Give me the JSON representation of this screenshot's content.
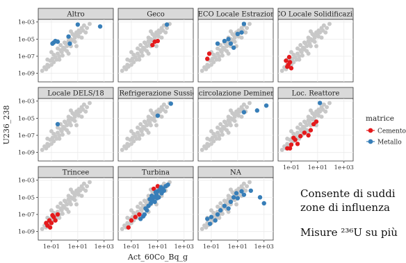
{
  "chart_data": {
    "type": "scatter",
    "facet_by": "location",
    "xlabel": "Act_60Co_Bq_g",
    "ylabel": "U236_238",
    "x_log": true,
    "y_log": true,
    "xlim": [
      0.01,
      5000
    ],
    "ylim": [
      1e-10,
      0.002
    ],
    "x_ticks": [
      0.1,
      10,
      1000
    ],
    "x_tick_labels": [
      "1e-01",
      "1e+01",
      "1e+03"
    ],
    "y_ticks": [
      1e-09,
      1e-07,
      1e-05,
      0.001
    ],
    "y_tick_labels": [
      "1e-09",
      "1e-07",
      "1e-05",
      "1e-03"
    ],
    "grid": true,
    "legend": {
      "title": "matrice",
      "position": "right",
      "entries": [
        {
          "name": "Cemento",
          "color": "#e41a1c"
        },
        {
          "name": "Metallo",
          "color": "#377eb8"
        }
      ]
    },
    "background_color": "#c8c8c8",
    "background_points": [
      [
        0.02,
        2e-09
      ],
      [
        0.03,
        5e-09
      ],
      [
        0.04,
        3e-09
      ],
      [
        0.05,
        1e-08
      ],
      [
        0.06,
        6e-09
      ],
      [
        0.08,
        3e-08
      ],
      [
        0.1,
        1e-08
      ],
      [
        0.12,
        5e-08
      ],
      [
        0.15,
        2e-08
      ],
      [
        0.2,
        8e-08
      ],
      [
        0.25,
        4e-08
      ],
      [
        0.3,
        2e-07
      ],
      [
        0.4,
        1e-07
      ],
      [
        0.5,
        5e-07
      ],
      [
        0.6,
        3e-07
      ],
      [
        0.8,
        1e-06
      ],
      [
        1,
        6e-07
      ],
      [
        1.2,
        3e-06
      ],
      [
        1.5,
        1.5e-06
      ],
      [
        2,
        6e-06
      ],
      [
        2.5,
        3e-06
      ],
      [
        3,
        1e-05
      ],
      [
        4,
        7e-06
      ],
      [
        5,
        3e-05
      ],
      [
        6,
        1.5e-05
      ],
      [
        8,
        6e-05
      ],
      [
        10,
        3e-05
      ],
      [
        12,
        0.0001
      ],
      [
        15,
        6e-05
      ],
      [
        20,
        0.0002
      ],
      [
        25,
        0.0001
      ],
      [
        30,
        0.0004
      ],
      [
        50,
        0.0002
      ],
      [
        80,
        0.0006
      ],
      [
        0.3,
        8e-07
      ],
      [
        0.5,
        2e-06
      ],
      [
        1,
        4e-06
      ],
      [
        2,
        1.5e-05
      ],
      [
        4,
        4e-05
      ],
      [
        0.7,
        1.2e-07
      ],
      [
        1.5,
        4e-07
      ],
      [
        3,
        1.5e-06
      ],
      [
        6,
        5e-06
      ],
      [
        12,
        2e-05
      ],
      [
        0.15,
        1.5e-07
      ],
      [
        0.4,
        4e-08
      ],
      [
        2,
        2e-07
      ],
      [
        8,
        1.5e-06
      ],
      [
        0.05,
        4e-08
      ],
      [
        20,
        1.5e-05
      ],
      [
        40,
        6e-05
      ],
      [
        0.1,
        3e-07
      ],
      [
        3,
        8e-05
      ]
    ],
    "facets": [
      {
        "label": "Altro",
        "show_y": true,
        "show_x": false,
        "points": [
          {
            "x": 0.15,
            "y": 4e-06,
            "m": "Metallo"
          },
          {
            "x": 0.2,
            "y": 6e-06,
            "m": "Metallo"
          },
          {
            "x": 0.3,
            "y": 5e-06,
            "m": "Metallo"
          },
          {
            "x": 0.12,
            "y": 3e-06,
            "m": "Metallo"
          },
          {
            "x": 2,
            "y": 2e-05,
            "m": "Metallo"
          },
          {
            "x": 2.5,
            "y": 3e-06,
            "m": "Metallo"
          },
          {
            "x": 10,
            "y": 0.0005,
            "m": "Metallo"
          },
          {
            "x": 500,
            "y": 0.0003,
            "m": "Metallo"
          }
        ]
      },
      {
        "label": "Geco",
        "show_y": false,
        "show_x": false,
        "points": [
          {
            "x": 6,
            "y": 5e-06,
            "m": "Cemento"
          },
          {
            "x": 10,
            "y": 6e-06,
            "m": "Cemento"
          },
          {
            "x": 4,
            "y": 2e-06,
            "m": "Cemento"
          },
          {
            "x": 50,
            "y": 0.0005,
            "m": "Metallo"
          }
        ]
      },
      {
        "label": "GECO Locale Estrazione",
        "show_y": false,
        "show_x": false,
        "points": [
          {
            "x": 0.05,
            "y": 5e-08,
            "m": "Cemento"
          },
          {
            "x": 0.07,
            "y": 2e-07,
            "m": "Cemento"
          },
          {
            "x": 0.3,
            "y": 3e-06,
            "m": "Metallo"
          },
          {
            "x": 1,
            "y": 6e-06,
            "m": "Metallo"
          },
          {
            "x": 2,
            "y": 1e-05,
            "m": "Metallo"
          },
          {
            "x": 3,
            "y": 3e-06,
            "m": "Metallo"
          },
          {
            "x": 5,
            "y": 1e-06,
            "m": "Metallo"
          },
          {
            "x": 10,
            "y": 4e-05,
            "m": "Metallo"
          },
          {
            "x": 20,
            "y": 6e-05,
            "m": "Metallo"
          },
          {
            "x": 30,
            "y": 0.0006,
            "m": "Metallo"
          }
        ]
      },
      {
        "label": "ECO Locale Solidificazion",
        "show_y": false,
        "show_x": false,
        "points": [
          {
            "x": 0.04,
            "y": 3e-08,
            "m": "Cemento"
          },
          {
            "x": 0.06,
            "y": 1e-08,
            "m": "Cemento"
          },
          {
            "x": 0.08,
            "y": 2e-08,
            "m": "Cemento"
          },
          {
            "x": 0.05,
            "y": 6e-09,
            "m": "Cemento"
          },
          {
            "x": 0.1,
            "y": 4e-09,
            "m": "Cemento"
          },
          {
            "x": 0.07,
            "y": 8e-08,
            "m": "Cemento"
          }
        ]
      },
      {
        "label": "Locale DELS/18",
        "show_y": true,
        "show_x": false,
        "points": [
          {
            "x": 0.3,
            "y": 2e-06,
            "m": "Metallo"
          }
        ]
      },
      {
        "label": "g Refrigerazione Sussidi",
        "show_y": false,
        "show_x": false,
        "points": [
          {
            "x": 10,
            "y": 2e-05,
            "m": "Metallo"
          },
          {
            "x": 100,
            "y": 0.0005,
            "m": "Metallo"
          }
        ]
      },
      {
        "label": "Ricircolazione Demineral",
        "show_y": false,
        "show_x": false,
        "points": [
          {
            "x": 30,
            "y": 5e-05,
            "m": "Metallo"
          },
          {
            "x": 300,
            "y": 8e-05,
            "m": "Metallo"
          },
          {
            "x": 1500,
            "y": 0.0003,
            "m": "Metallo"
          }
        ]
      },
      {
        "label": "Loc. Reattore",
        "show_y": false,
        "show_x": true,
        "points": [
          {
            "x": 0.05,
            "y": 3e-09,
            "m": "Cemento"
          },
          {
            "x": 0.1,
            "y": 8e-09,
            "m": "Cemento"
          },
          {
            "x": 0.08,
            "y": 3e-09,
            "m": "Cemento"
          },
          {
            "x": 0.2,
            "y": 3e-08,
            "m": "Cemento"
          },
          {
            "x": 0.3,
            "y": 1e-08,
            "m": "Cemento"
          },
          {
            "x": 0.5,
            "y": 8e-08,
            "m": "Cemento"
          },
          {
            "x": 0.15,
            "y": 5e-08,
            "m": "Cemento"
          },
          {
            "x": 1,
            "y": 2e-07,
            "m": "Cemento"
          },
          {
            "x": 2,
            "y": 1e-07,
            "m": "Cemento"
          },
          {
            "x": 3,
            "y": 4e-07,
            "m": "Cemento"
          },
          {
            "x": 5,
            "y": 2e-06,
            "m": "Cemento"
          },
          {
            "x": 8,
            "y": 4e-06,
            "m": "Cemento"
          },
          {
            "x": 15,
            "y": 0.0006,
            "m": "Metallo"
          }
        ]
      },
      {
        "label": "Trincee",
        "show_y": true,
        "show_x": true,
        "points": [
          {
            "x": 0.05,
            "y": 5e-09,
            "m": "Cemento"
          },
          {
            "x": 0.04,
            "y": 1e-08,
            "m": "Cemento"
          },
          {
            "x": 0.07,
            "y": 2e-08,
            "m": "Cemento"
          },
          {
            "x": 0.1,
            "y": 1e-08,
            "m": "Cemento"
          },
          {
            "x": 0.15,
            "y": 5e-08,
            "m": "Cemento"
          },
          {
            "x": 0.08,
            "y": 3e-09,
            "m": "Cemento"
          },
          {
            "x": 0.2,
            "y": 2e-08,
            "m": "Cemento"
          },
          {
            "x": 0.3,
            "y": 1e-07,
            "m": "Cemento"
          },
          {
            "x": 0.12,
            "y": 8e-08,
            "m": "Cemento"
          }
        ]
      },
      {
        "label": "Turbina",
        "show_y": false,
        "show_x": true,
        "points": [
          {
            "x": 0.06,
            "y": 3e-09,
            "m": "Cemento"
          },
          {
            "x": 0.1,
            "y": 2e-08,
            "m": "Cemento"
          },
          {
            "x": 0.2,
            "y": 5e-08,
            "m": "Cemento"
          },
          {
            "x": 0.4,
            "y": 1e-07,
            "m": "Cemento"
          },
          {
            "x": 5,
            "y": 0.0001,
            "m": "Cemento"
          },
          {
            "x": 10,
            "y": 0.0002,
            "m": "Cemento"
          },
          {
            "x": 1,
            "y": 1e-07,
            "m": "Metallo"
          },
          {
            "x": 1.5,
            "y": 3e-07,
            "m": "Metallo"
          },
          {
            "x": 2,
            "y": 1e-06,
            "m": "Metallo"
          },
          {
            "x": 3,
            "y": 2e-06,
            "m": "Metallo"
          },
          {
            "x": 4,
            "y": 5e-06,
            "m": "Metallo"
          },
          {
            "x": 5,
            "y": 1e-05,
            "m": "Metallo"
          },
          {
            "x": 6,
            "y": 3e-06,
            "m": "Metallo"
          },
          {
            "x": 8,
            "y": 2e-05,
            "m": "Metallo"
          },
          {
            "x": 10,
            "y": 5e-05,
            "m": "Metallo"
          },
          {
            "x": 12,
            "y": 1e-05,
            "m": "Metallo"
          },
          {
            "x": 15,
            "y": 8e-05,
            "m": "Metallo"
          },
          {
            "x": 20,
            "y": 3e-05,
            "m": "Metallo"
          },
          {
            "x": 25,
            "y": 0.0001,
            "m": "Metallo"
          },
          {
            "x": 30,
            "y": 6e-05,
            "m": "Metallo"
          },
          {
            "x": 40,
            "y": 0.0002,
            "m": "Metallo"
          },
          {
            "x": 2.5,
            "y": 6e-06,
            "m": "Metallo"
          },
          {
            "x": 3.5,
            "y": 1.5e-05,
            "m": "Metallo"
          },
          {
            "x": 7,
            "y": 4e-05,
            "m": "Metallo"
          },
          {
            "x": 0.5,
            "y": 3e-08,
            "m": "Metallo"
          },
          {
            "x": 0.8,
            "y": 6e-08,
            "m": "Metallo"
          },
          {
            "x": 1.2,
            "y": 5e-07,
            "m": "Metallo"
          },
          {
            "x": 18,
            "y": 0.00015,
            "m": "Metallo"
          },
          {
            "x": 60,
            "y": 0.0003,
            "m": "Metallo"
          },
          {
            "x": 9,
            "y": 8e-06,
            "m": "Metallo"
          }
        ]
      },
      {
        "label": "NA",
        "show_y": false,
        "show_x": true,
        "points": [
          {
            "x": 0.05,
            "y": 3e-08,
            "m": "Metallo"
          },
          {
            "x": 0.08,
            "y": 8e-09,
            "m": "Metallo"
          },
          {
            "x": 0.1,
            "y": 5e-08,
            "m": "Metallo"
          },
          {
            "x": 0.2,
            "y": 2e-08,
            "m": "Metallo"
          },
          {
            "x": 0.3,
            "y": 1e-07,
            "m": "Metallo"
          },
          {
            "x": 0.5,
            "y": 3e-07,
            "m": "Metallo"
          },
          {
            "x": 1,
            "y": 1e-06,
            "m": "Metallo"
          },
          {
            "x": 2,
            "y": 5e-07,
            "m": "Metallo"
          },
          {
            "x": 3,
            "y": 3e-06,
            "m": "Metallo"
          },
          {
            "x": 5,
            "y": 1e-05,
            "m": "Metallo"
          },
          {
            "x": 8,
            "y": 3e-05,
            "m": "Metallo"
          },
          {
            "x": 10,
            "y": 8e-06,
            "m": "Metallo"
          },
          {
            "x": 20,
            "y": 5e-05,
            "m": "Metallo"
          },
          {
            "x": 30,
            "y": 2e-05,
            "m": "Metallo"
          },
          {
            "x": 100,
            "y": 6e-05,
            "m": "Metallo"
          },
          {
            "x": 500,
            "y": 1e-05,
            "m": "Metallo"
          },
          {
            "x": 1000,
            "y": 2e-06,
            "m": "Metallo"
          }
        ]
      }
    ]
  },
  "side_text": {
    "line1": "Consente di suddi",
    "line2": "zone di influenza",
    "line3": "Misure ²³⁶U su più"
  }
}
